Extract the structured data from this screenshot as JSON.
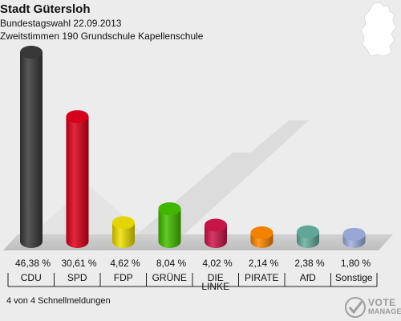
{
  "header": {
    "title": "Stadt Gütersloh",
    "subtitle": "Bundestagswahl 22.09.2013",
    "subtitle2": "Zweitstimmen 190 Grundschule Kapellenschule"
  },
  "footer": {
    "note": "4 von 4 Schnellmeldungen",
    "logo_line1": "VOTE",
    "logo_line2": "MANAGER"
  },
  "colors": {
    "background": "#ececec",
    "floor": "#c8c8c8",
    "stripe": "#dcdcdc"
  },
  "chart_data": {
    "type": "bar",
    "title": "Stadt Gütersloh",
    "categories": [
      "CDU",
      "SPD",
      "FDP",
      "GRÜNE",
      "DIE LINKE",
      "PIRATE",
      "AfD",
      "Sonstige"
    ],
    "values": [
      46.38,
      30.61,
      4.62,
      8.04,
      4.02,
      2.14,
      2.38,
      1.8
    ],
    "value_labels": [
      "46,38 %",
      "30,61 %",
      "4,62 %",
      "8,04 %",
      "4,02 %",
      "2,14 %",
      "2,38 %",
      "1,80 %"
    ],
    "colors": [
      "#3a3a3a",
      "#e0001a",
      "#f0e000",
      "#44c000",
      "#d0164a",
      "#ff8800",
      "#66b0a0",
      "#a0b0e0"
    ],
    "ylim": [
      0,
      50
    ],
    "xlabel": "",
    "ylabel": ""
  }
}
